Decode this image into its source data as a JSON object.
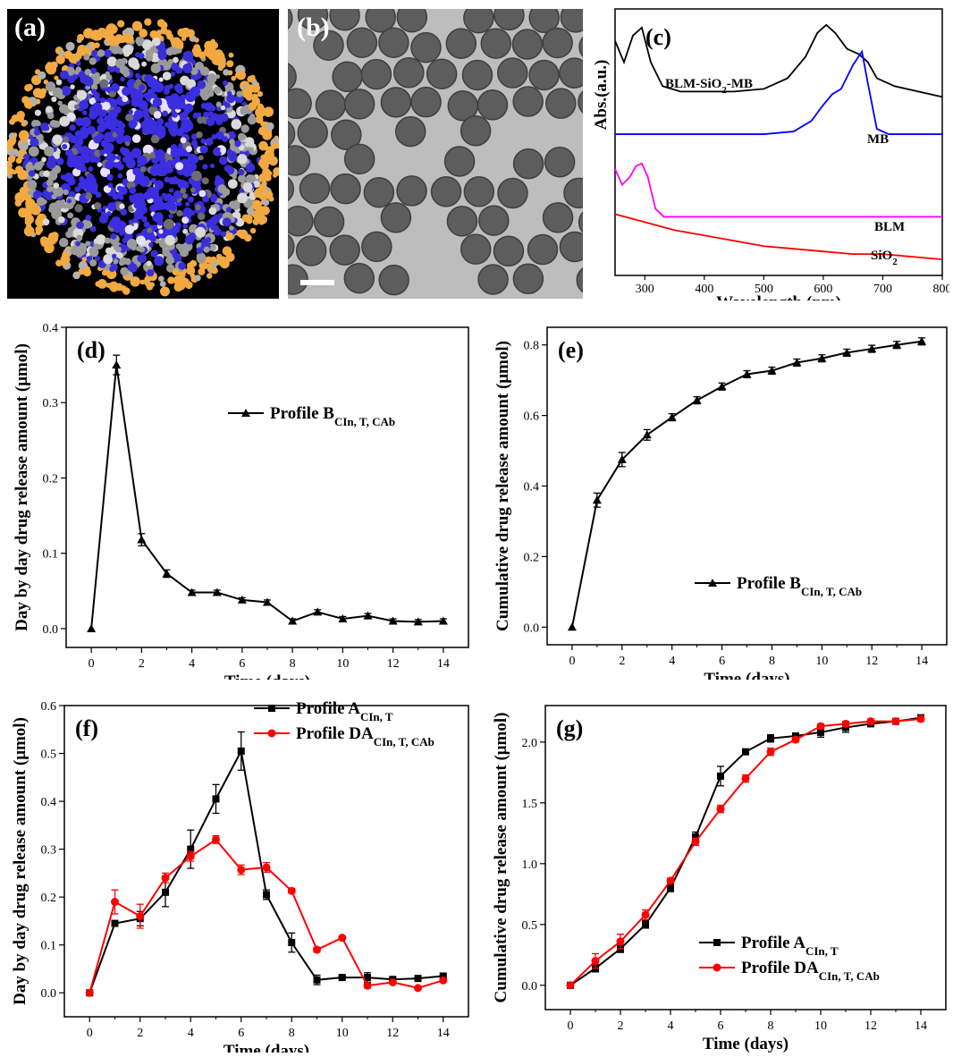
{
  "panels": {
    "a": {
      "label": "(a)"
    },
    "b": {
      "label": "(b)"
    }
  },
  "chart_data": [
    {
      "id": "c",
      "type": "line",
      "label": "(c)",
      "xlabel": "Wavelength (nm)",
      "ylabel": "Abs.(a.u.)",
      "xlim": [
        250,
        800
      ],
      "xticks": [
        300,
        400,
        500,
        600,
        700,
        800
      ],
      "grid": false,
      "series": [
        {
          "name": "BLM-SiO",
          "name_sub": "2",
          "name_post": "-MB",
          "color": "#000000",
          "x": [
            250,
            265,
            280,
            295,
            310,
            330,
            360,
            400,
            450,
            500,
            540,
            570,
            590,
            605,
            620,
            640,
            660,
            675,
            690,
            720,
            760,
            800
          ],
          "y": [
            0.88,
            0.8,
            0.9,
            0.93,
            0.8,
            0.71,
            0.69,
            0.69,
            0.69,
            0.7,
            0.74,
            0.82,
            0.91,
            0.94,
            0.91,
            0.85,
            0.83,
            0.8,
            0.74,
            0.71,
            0.69,
            0.67
          ]
        },
        {
          "name": "MB",
          "color": "#0000ff",
          "x": [
            250,
            300,
            400,
            500,
            550,
            580,
            600,
            615,
            630,
            650,
            665,
            675,
            690,
            710,
            750,
            800
          ],
          "y": [
            0.53,
            0.53,
            0.53,
            0.53,
            0.54,
            0.58,
            0.64,
            0.68,
            0.7,
            0.79,
            0.84,
            0.72,
            0.55,
            0.53,
            0.53,
            0.53
          ]
        },
        {
          "name": "BLM",
          "color": "#ff00ff",
          "x": [
            250,
            262,
            275,
            285,
            295,
            305,
            318,
            332,
            360,
            400,
            500,
            600,
            700,
            800
          ],
          "y": [
            0.4,
            0.34,
            0.37,
            0.41,
            0.42,
            0.37,
            0.25,
            0.22,
            0.22,
            0.22,
            0.22,
            0.22,
            0.22,
            0.22
          ]
        },
        {
          "name": "SiO",
          "name_sub": "2",
          "name_post": "",
          "color": "#ff0000",
          "x": [
            250,
            300,
            350,
            400,
            450,
            500,
            550,
            600,
            650,
            700,
            750,
            800
          ],
          "y": [
            0.23,
            0.2,
            0.17,
            0.15,
            0.13,
            0.11,
            0.1,
            0.09,
            0.08,
            0.08,
            0.07,
            0.06
          ]
        }
      ]
    },
    {
      "id": "d",
      "type": "line",
      "label": "(d)",
      "xlabel": "Time (days)",
      "ylabel": "Day by day drug release amount (μmol)",
      "xlim": [
        -1,
        15
      ],
      "ylim": [
        -0.025,
        0.4
      ],
      "xticks": [
        0,
        2,
        4,
        6,
        8,
        10,
        12,
        14
      ],
      "yticks": [
        0.0,
        0.1,
        0.2,
        0.3,
        0.4
      ],
      "ytick_labels": [
        "0.0",
        "0.1",
        "0.2",
        "0.3",
        "0.4"
      ],
      "legend": "top-right",
      "series": [
        {
          "name": "Profile B",
          "name_sub": "CIn, T, CAb",
          "color": "#000000",
          "marker": "triangle",
          "x": [
            0,
            1,
            2,
            3,
            4,
            5,
            6,
            7,
            8,
            9,
            10,
            11,
            12,
            13,
            14
          ],
          "y": [
            0.0,
            0.35,
            0.118,
            0.073,
            0.048,
            0.048,
            0.038,
            0.035,
            0.01,
            0.022,
            0.013,
            0.017,
            0.01,
            0.009,
            0.01
          ],
          "err": [
            0,
            0.013,
            0.008,
            0.005,
            0.003,
            0.003,
            0.003,
            0.003,
            0.003,
            0.003,
            0.003,
            0.003,
            0.003,
            0.003,
            0.003
          ]
        }
      ]
    },
    {
      "id": "e",
      "type": "line",
      "label": "(e)",
      "xlabel": "Time (days)",
      "ylabel": "Cumulative drug release amount (μmol)",
      "xlim": [
        -1,
        15
      ],
      "ylim": [
        -0.05,
        0.85
      ],
      "xticks": [
        0,
        2,
        4,
        6,
        8,
        10,
        12,
        14
      ],
      "yticks": [
        0.0,
        0.2,
        0.4,
        0.6,
        0.8
      ],
      "ytick_labels": [
        "0.0",
        "0.2",
        "0.4",
        "0.6",
        "0.8"
      ],
      "legend": "bottom-right",
      "series": [
        {
          "name": "Profile B",
          "name_sub": "CIn, T, CAb",
          "color": "#000000",
          "marker": "triangle",
          "x": [
            0,
            1,
            2,
            3,
            4,
            5,
            6,
            7,
            8,
            9,
            10,
            11,
            12,
            13,
            14
          ],
          "y": [
            0.0,
            0.36,
            0.475,
            0.545,
            0.595,
            0.643,
            0.682,
            0.717,
            0.727,
            0.75,
            0.762,
            0.778,
            0.789,
            0.8,
            0.81
          ],
          "err": [
            0,
            0.02,
            0.02,
            0.015,
            0.01,
            0.01,
            0.01,
            0.01,
            0.01,
            0.01,
            0.01,
            0.01,
            0.01,
            0.01,
            0.01
          ]
        }
      ]
    },
    {
      "id": "f",
      "type": "line",
      "label": "(f)",
      "xlabel": "Time (days)",
      "ylabel": "Day by day drug release amount (μmol)",
      "xlim": [
        -1,
        15
      ],
      "ylim": [
        -0.05,
        0.6
      ],
      "xticks": [
        0,
        2,
        4,
        6,
        8,
        10,
        12,
        14
      ],
      "yticks": [
        0.0,
        0.1,
        0.2,
        0.3,
        0.4,
        0.5,
        0.6
      ],
      "ytick_labels": [
        "0.0",
        "0.1",
        "0.2",
        "0.3",
        "0.4",
        "0.5",
        "0.6"
      ],
      "legend": "top-right",
      "series": [
        {
          "name": "Profile A",
          "name_sub": "CIn, T",
          "color": "#000000",
          "marker": "square",
          "x": [
            0,
            1,
            2,
            3,
            4,
            5,
            6,
            7,
            8,
            9,
            10,
            11,
            12,
            13,
            14
          ],
          "y": [
            0.0,
            0.145,
            0.155,
            0.21,
            0.3,
            0.405,
            0.505,
            0.205,
            0.105,
            0.027,
            0.032,
            0.032,
            0.028,
            0.03,
            0.035
          ],
          "err": [
            0,
            0.005,
            0.015,
            0.03,
            0.04,
            0.03,
            0.04,
            0.01,
            0.02,
            0.01,
            0.003,
            0.01,
            0.003,
            0.005,
            0.003
          ]
        },
        {
          "name": "Profile DA",
          "name_sub": "CIn, T, CAb",
          "color": "#ff0000",
          "marker": "circle",
          "x": [
            0,
            1,
            2,
            3,
            4,
            5,
            6,
            7,
            8,
            9,
            10,
            11,
            12,
            13,
            14
          ],
          "y": [
            0.0,
            0.19,
            0.16,
            0.24,
            0.285,
            0.32,
            0.257,
            0.262,
            0.213,
            0.09,
            0.115,
            0.015,
            0.022,
            0.01,
            0.026
          ],
          "err": [
            0,
            0.025,
            0.025,
            0.01,
            0.01,
            0.008,
            0.01,
            0.01,
            0.005,
            0.005,
            0.003,
            0.005,
            0.003,
            0.003,
            0.003
          ]
        }
      ]
    },
    {
      "id": "g",
      "type": "line",
      "label": "(g)",
      "xlabel": "Time (days)",
      "ylabel": "Cumulative drug release amount (μmol)",
      "xlim": [
        -1,
        15
      ],
      "ylim": [
        -0.2,
        2.3
      ],
      "xticks": [
        0,
        2,
        4,
        6,
        8,
        10,
        12,
        14
      ],
      "yticks": [
        0.0,
        0.5,
        1.0,
        1.5,
        2.0
      ],
      "ytick_labels": [
        "0.0",
        "0.5",
        "1.0",
        "1.5",
        "2.0"
      ],
      "legend": "bottom-right",
      "series": [
        {
          "name": "Profile A",
          "name_sub": "CIn, T",
          "color": "#000000",
          "marker": "square",
          "x": [
            0,
            1,
            2,
            3,
            4,
            5,
            6,
            7,
            8,
            9,
            10,
            11,
            12,
            13,
            14
          ],
          "y": [
            0.0,
            0.14,
            0.3,
            0.5,
            0.8,
            1.22,
            1.72,
            1.92,
            2.03,
            2.05,
            2.08,
            2.12,
            2.15,
            2.17,
            2.2
          ],
          "err": [
            0,
            0.03,
            0.03,
            0.03,
            0.03,
            0.04,
            0.08,
            0.02,
            0.03,
            0.02,
            0.04,
            0.04,
            0.02,
            0.02,
            0.02
          ]
        },
        {
          "name": "Profile DA",
          "name_sub": "CIn, T, CAb",
          "color": "#ff0000",
          "marker": "circle",
          "x": [
            0,
            1,
            2,
            3,
            4,
            5,
            6,
            7,
            8,
            9,
            10,
            11,
            12,
            13,
            14
          ],
          "y": [
            0.0,
            0.2,
            0.36,
            0.58,
            0.86,
            1.18,
            1.45,
            1.7,
            1.92,
            2.02,
            2.13,
            2.15,
            2.17,
            2.17,
            2.19
          ],
          "err": [
            0,
            0.06,
            0.06,
            0.04,
            0.02,
            0.03,
            0.03,
            0.03,
            0.03,
            0.02,
            0.02,
            0.02,
            0.02,
            0.02,
            0.02
          ]
        }
      ]
    }
  ]
}
